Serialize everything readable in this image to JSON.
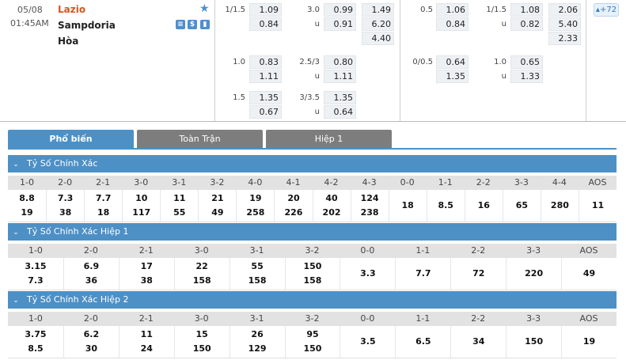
{
  "match": {
    "date": "05/08",
    "time": "01:45AM",
    "home": "Lazio",
    "away": "Sampdoria",
    "draw": "Hòa",
    "more_count": "+72"
  },
  "odds_rows": [
    {
      "h_line": "1/1.5",
      "h_home": "1.09",
      "h_away": "0.84",
      "ou_line": "3.0",
      "ou_over": "0.99",
      "ou_under_lbl": "u",
      "ou_under": "0.91",
      "x1": "1.49",
      "x2": "6.20",
      "xd": "4.40",
      "fh_line": "0.5",
      "fh_home": "1.06",
      "fh_away": "0.84",
      "fou_line": "1/1.5",
      "fou_over": "1.08",
      "fou_under_lbl": "u",
      "fou_under": "0.82",
      "f1": "2.06",
      "f2": "5.40",
      "fd": "2.33"
    },
    {
      "h_line": "1.0",
      "h_home": "0.83",
      "h_away": "1.11",
      "ou_line": "2.5/3",
      "ou_over": "0.80",
      "ou_under_lbl": "u",
      "ou_under": "1.11",
      "fh_line": "0/0.5",
      "fh_home": "0.64",
      "fh_away": "1.35",
      "fou_line": "1.0",
      "fou_over": "0.65",
      "fou_under_lbl": "u",
      "fou_under": "1.33"
    },
    {
      "h_line": "1.5",
      "h_home": "1.35",
      "h_away": "0.67",
      "ou_line": "3/3.5",
      "ou_over": "1.35",
      "ou_under_lbl": "u",
      "ou_under": "0.64"
    }
  ],
  "tabs": [
    "Phổ biến",
    "Toàn Trận",
    "Hiệp 1"
  ],
  "sections": [
    {
      "title": "Tỷ Số Chính Xác",
      "headers": [
        "1-0",
        "2-0",
        "2-1",
        "3-0",
        "3-1",
        "3-2",
        "4-0",
        "4-1",
        "4-2",
        "4-3",
        "0-0",
        "1-1",
        "2-2",
        "3-3",
        "4-4",
        "AOS"
      ],
      "top": [
        "8.8",
        "7.3",
        "7.7",
        "10",
        "11",
        "21",
        "19",
        "20",
        "40",
        "124"
      ],
      "bottom": [
        "19",
        "38",
        "18",
        "117",
        "55",
        "49",
        "258",
        "226",
        "202",
        "238"
      ],
      "mid": [
        "18",
        "8.5",
        "16",
        "65",
        "280",
        "11"
      ]
    },
    {
      "title": "Tỷ Số Chính Xác Hiệp 1",
      "headers": [
        "1-0",
        "2-0",
        "2-1",
        "3-0",
        "3-1",
        "3-2",
        "0-0",
        "1-1",
        "2-2",
        "3-3",
        "AOS"
      ],
      "top": [
        "3.15",
        "6.9",
        "17",
        "22",
        "55",
        "150"
      ],
      "bottom": [
        "7.3",
        "36",
        "38",
        "158",
        "158",
        "158"
      ],
      "mid": [
        "3.3",
        "7.7",
        "72",
        "220",
        "49"
      ]
    },
    {
      "title": "Tỷ Số Chính Xác Hiệp 2",
      "headers": [
        "1-0",
        "2-0",
        "2-1",
        "3-0",
        "3-1",
        "3-2",
        "0-0",
        "1-1",
        "2-2",
        "3-3",
        "AOS"
      ],
      "top": [
        "3.75",
        "6.2",
        "11",
        "15",
        "26",
        "95"
      ],
      "bottom": [
        "8.5",
        "30",
        "24",
        "150",
        "129",
        "150"
      ],
      "mid": [
        "3.5",
        "6.5",
        "34",
        "150",
        "19"
      ]
    }
  ],
  "colors": {
    "accent": "#4d90c6",
    "home": "#d9541e",
    "tab_inactive": "#7d7d7d"
  },
  "icons": [
    "star-icon",
    "list-icon",
    "dollar-icon",
    "stats-icon",
    "chevron-down-icon"
  ]
}
